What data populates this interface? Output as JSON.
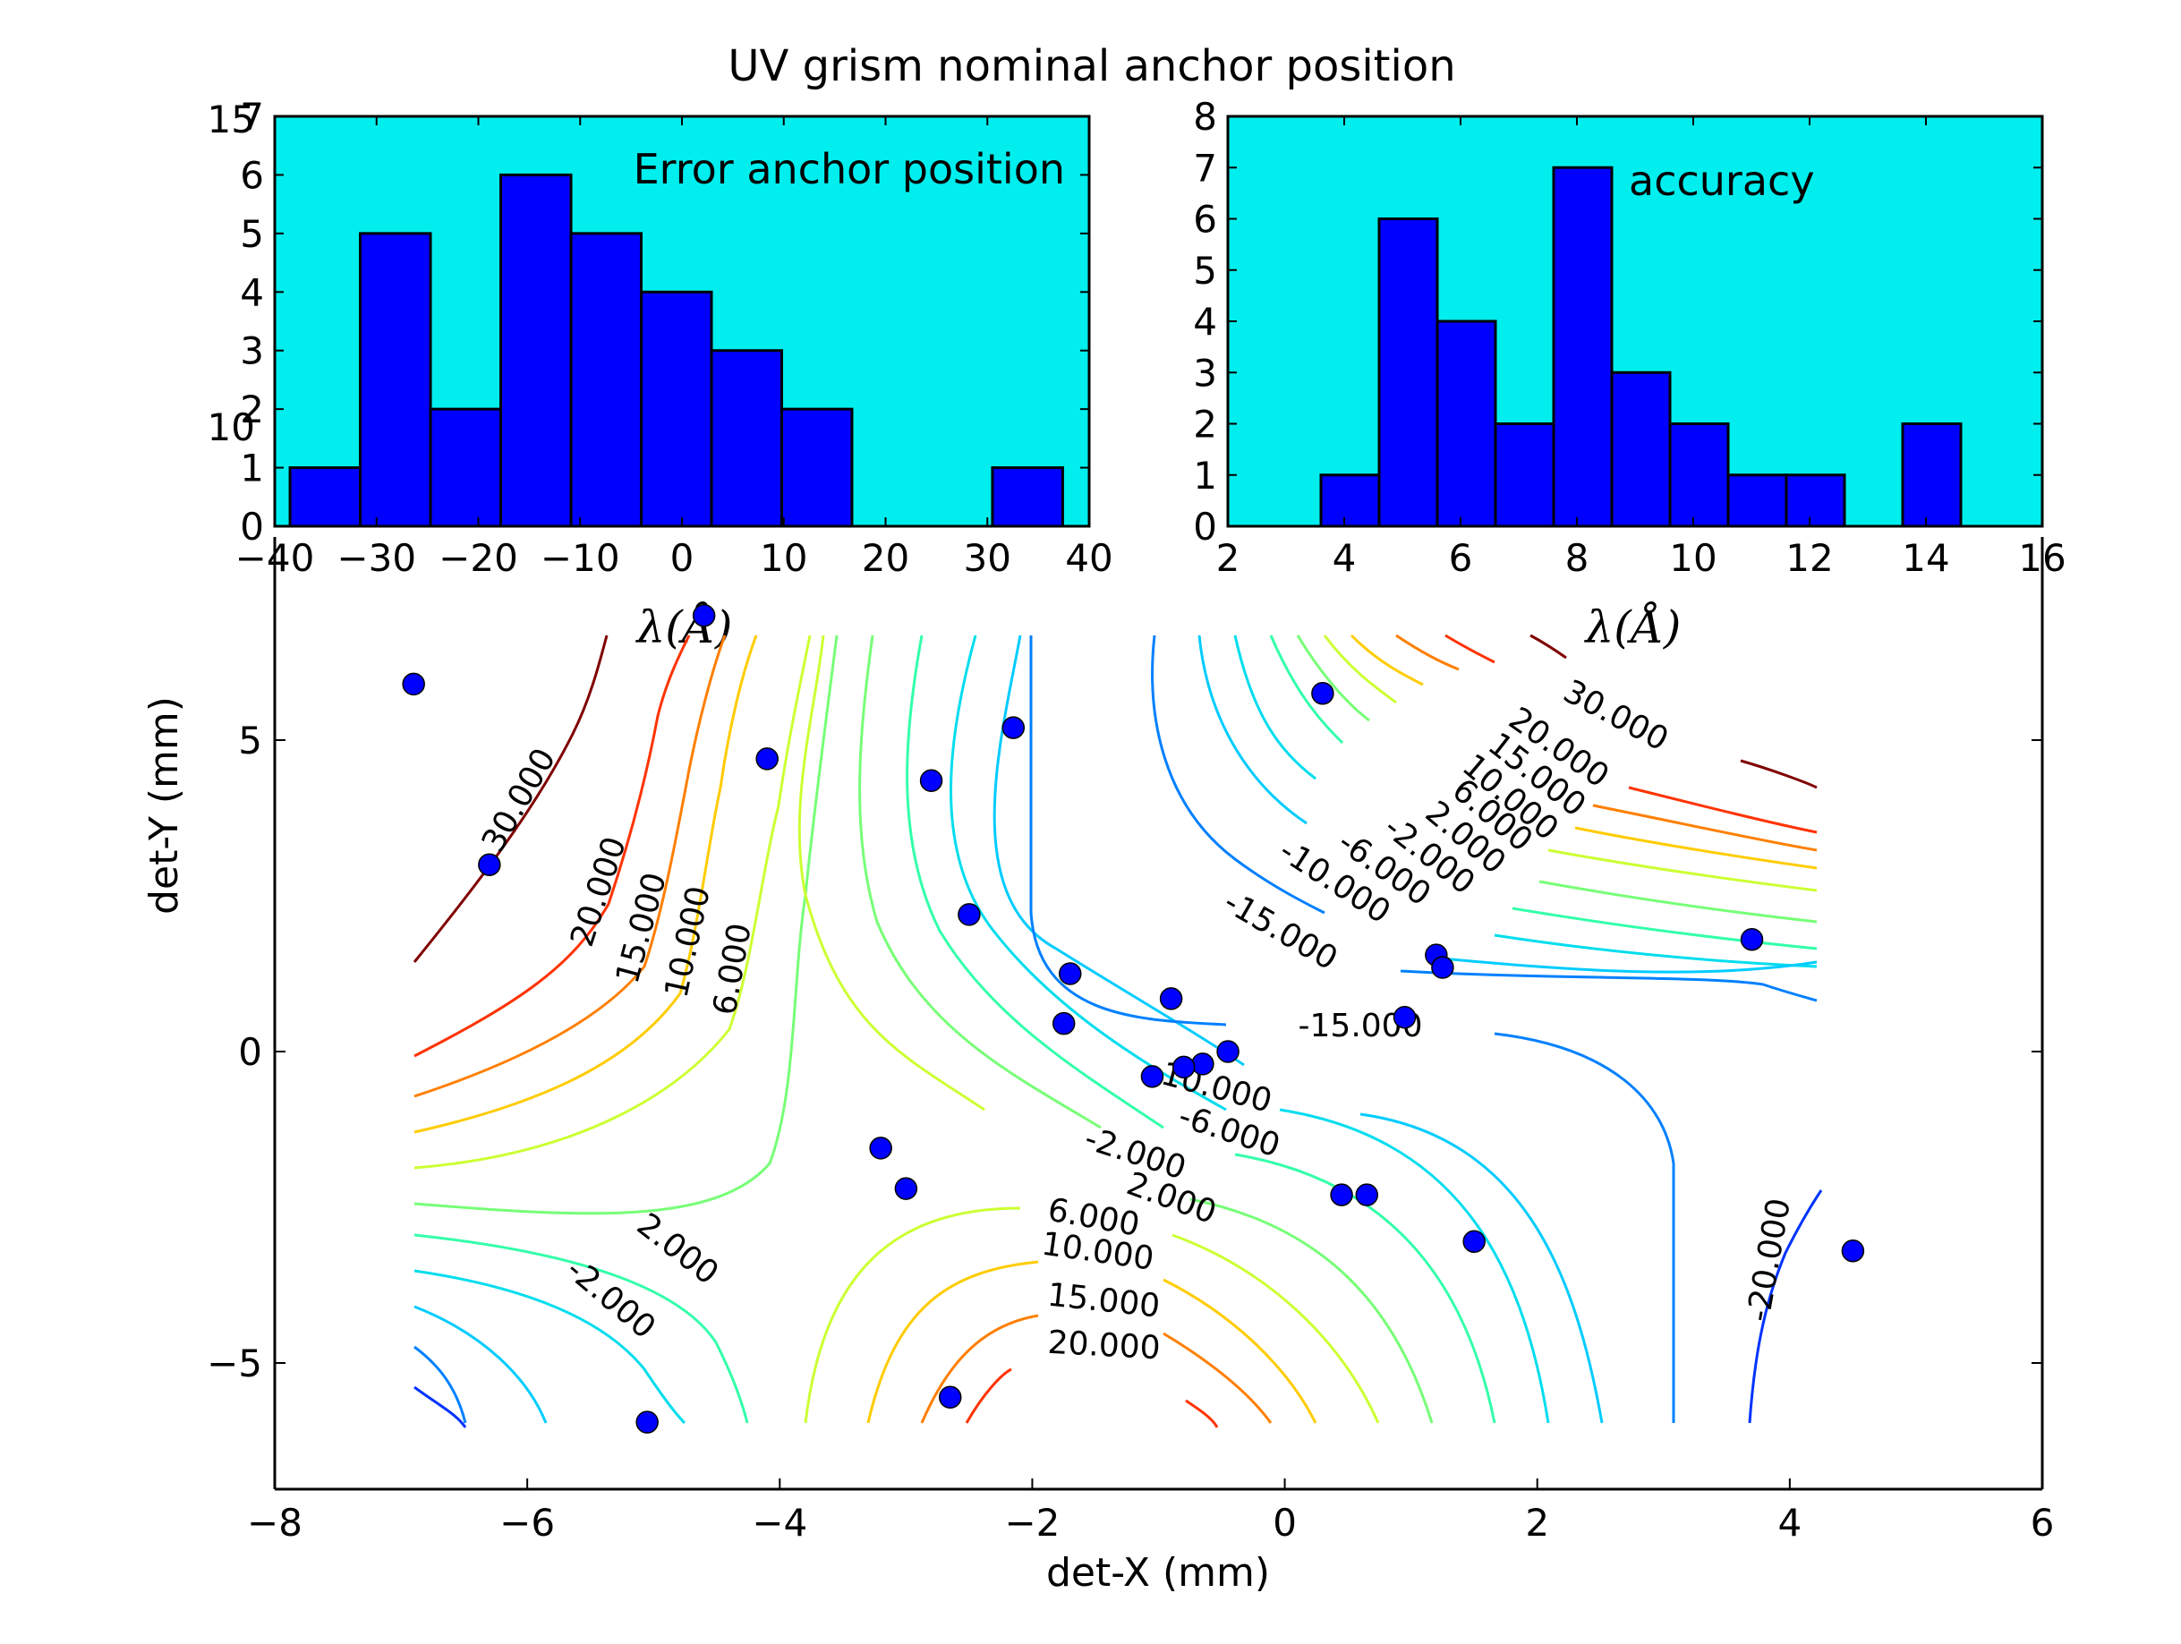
{
  "figure": {
    "title": "UV grism nominal anchor position"
  },
  "chart_data": [
    {
      "type": "bar",
      "panel": "top-left histogram",
      "annotation": "Error anchor position",
      "xlabel": "λ(Å)",
      "xlim": [
        -40,
        40
      ],
      "ylim": [
        0,
        7
      ],
      "xticks": [
        "−40",
        "−30",
        "−20",
        "−10",
        "0",
        "10",
        "20",
        "30",
        "40"
      ],
      "yticks": [
        "0",
        "1",
        "2",
        "3",
        "4",
        "5",
        "6",
        "7"
      ],
      "stray_tick_labels": [
        "15",
        "10"
      ],
      "bin_edges": [
        -38.5,
        -31.6,
        -24.7,
        -17.8,
        -10.9,
        -4.0,
        2.9,
        9.8,
        16.7,
        23.6,
        30.5,
        37.4
      ],
      "counts": [
        1,
        5,
        2,
        6,
        5,
        4,
        3,
        2,
        0,
        0,
        1
      ],
      "background": "#00eeee",
      "bar_color": "#0000ff"
    },
    {
      "type": "bar",
      "panel": "top-right histogram",
      "annotation": "accuracy",
      "xlabel": "λ(Å)",
      "xlim": [
        2,
        16
      ],
      "ylim": [
        0,
        8
      ],
      "xticks": [
        "2",
        "4",
        "6",
        "8",
        "10",
        "12",
        "14",
        "16"
      ],
      "yticks": [
        "0",
        "1",
        "2",
        "3",
        "4",
        "5",
        "6",
        "7",
        "8"
      ],
      "bin_edges": [
        3.6,
        4.6,
        5.6,
        6.6,
        7.6,
        8.6,
        9.6,
        10.6,
        11.6,
        12.6,
        13.6,
        14.6
      ],
      "counts": [
        1,
        6,
        4,
        2,
        7,
        3,
        2,
        1,
        1,
        0,
        2
      ],
      "background": "#00eeee",
      "bar_color": "#0000ff"
    },
    {
      "type": "scatter",
      "panel": "main contour map",
      "xlabel": "det-X (mm)",
      "ylabel": "det-Y (mm)",
      "xlim": [
        -8,
        6
      ],
      "ylim": [
        -7,
        7
      ],
      "xticks": [
        "−8",
        "−6",
        "−4",
        "−2",
        "0",
        "2",
        "4",
        "6"
      ],
      "yticks": [
        "−5",
        "0",
        "5"
      ],
      "ytick_values": [
        -5,
        0,
        5
      ],
      "points": [
        [
          -6.9,
          5.9
        ],
        [
          -4.6,
          7.0
        ],
        [
          -6.3,
          3.0
        ],
        [
          -4.1,
          4.7
        ],
        [
          -2.8,
          4.35
        ],
        [
          -2.15,
          5.2
        ],
        [
          -2.5,
          2.2
        ],
        [
          -1.7,
          1.25
        ],
        [
          -1.75,
          0.45
        ],
        [
          -0.9,
          0.85
        ],
        [
          -0.45,
          0.0
        ],
        [
          -0.65,
          -0.2
        ],
        [
          -0.8,
          -0.25
        ],
        [
          -1.05,
          -0.4
        ],
        [
          0.3,
          5.75
        ],
        [
          1.2,
          1.55
        ],
        [
          1.25,
          1.35
        ],
        [
          0.95,
          0.55
        ],
        [
          3.7,
          1.8
        ],
        [
          -3.2,
          -1.55
        ],
        [
          -3.0,
          -2.2
        ],
        [
          0.45,
          -2.3
        ],
        [
          0.65,
          -2.3
        ],
        [
          1.5,
          -3.05
        ],
        [
          4.5,
          -3.2
        ],
        [
          -5.05,
          -5.95
        ],
        [
          -2.65,
          -5.55
        ]
      ],
      "point_color": "#0000ff",
      "contour_labels": [
        {
          "text": "30.000",
          "color": "#800000"
        },
        {
          "text": "20.000",
          "color": "#ff3300"
        },
        {
          "text": "15.000",
          "color": "#ff7f00"
        },
        {
          "text": "10.000",
          "color": "#ffcc00"
        },
        {
          "text": "6.000",
          "color": "#ccff33"
        },
        {
          "text": "30.000",
          "color": "#800000"
        },
        {
          "text": "20.000",
          "color": "#ff3300"
        },
        {
          "text": "15.000",
          "color": "#ff7f00"
        },
        {
          "text": "10.000",
          "color": "#ffcc00"
        },
        {
          "text": "6.000",
          "color": "#ccff33"
        },
        {
          "text": "2.000",
          "color": "#77ff77"
        },
        {
          "text": "-2.000",
          "color": "#33ffaa"
        },
        {
          "text": "-6.000",
          "color": "#00ddee"
        },
        {
          "text": "-10.000",
          "color": "#00ccff"
        },
        {
          "text": "-15.000",
          "color": "#0080ff"
        },
        {
          "text": "-15.000",
          "color": "#0080ff"
        },
        {
          "text": "-10.000",
          "color": "#00ccff"
        },
        {
          "text": "-6.000",
          "color": "#00ddee"
        },
        {
          "text": "-2.000",
          "color": "#33ffaa"
        },
        {
          "text": "2.000",
          "color": "#77ff77"
        },
        {
          "text": "6.000",
          "color": "#ccff33"
        },
        {
          "text": "10.000",
          "color": "#ffcc00"
        },
        {
          "text": "15.000",
          "color": "#ff7f00"
        },
        {
          "text": "20.000",
          "color": "#ff3300"
        },
        {
          "text": "2.000",
          "color": "#77ff77"
        },
        {
          "text": "-2.000",
          "color": "#33ffaa"
        },
        {
          "text": "-20.000",
          "color": "#0033ff"
        }
      ]
    }
  ]
}
